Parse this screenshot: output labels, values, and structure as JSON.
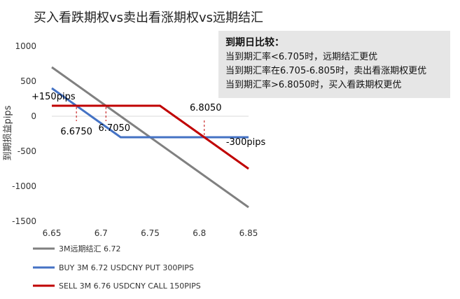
{
  "chart_data": {
    "type": "line",
    "title": "买入看跌期权vs卖出看涨期权vs远期结汇",
    "ylabel": "到期损益pips",
    "xlabel": "",
    "xlim": [
      6.65,
      6.85
    ],
    "ylim": [
      -1500,
      1000
    ],
    "xticks": [
      "6.65",
      "6.7",
      "6.75",
      "6.8",
      "6.85"
    ],
    "yticks": [
      "1000",
      "500",
      "0",
      "-500",
      "-1000",
      "-1500"
    ],
    "grid": false,
    "legend": "bottom",
    "series": [
      {
        "name": "3M远期结汇 6.72",
        "color": "#808080",
        "points": [
          [
            6.65,
            700
          ],
          [
            6.85,
            -1300
          ]
        ]
      },
      {
        "name": "BUY 3M 6.72 USDCNY PUT 300PIPS",
        "color": "#4472C4",
        "points": [
          [
            6.65,
            400
          ],
          [
            6.72,
            -300
          ],
          [
            6.85,
            -300
          ]
        ]
      },
      {
        "name": "SELL 3M 6.76 USDCNY CALL 150PIPS",
        "color": "#C00000",
        "points": [
          [
            6.65,
            150
          ],
          [
            6.76,
            150
          ],
          [
            6.85,
            -750
          ]
        ]
      }
    ],
    "annotations": [
      {
        "text": "+150pips",
        "x": 6.65,
        "y": 150
      },
      {
        "text": "-300pips",
        "x": 6.82,
        "y": -450
      },
      {
        "text": "6.6750",
        "x": 6.675,
        "y": 150,
        "marker_x": 6.675
      },
      {
        "text": "6.7050",
        "x": 6.705,
        "y": 150,
        "marker_x": 6.705
      },
      {
        "text": "6.8050",
        "x": 6.805,
        "y": -300,
        "marker_x": 6.805
      }
    ]
  },
  "comparison_box": {
    "title": "到期日比较：",
    "lines": [
      "当到期汇率<6.705时，远期结汇更优",
      "当到期汇率在6.705-6.805时，卖出看涨期权更优",
      "当到期汇率>6.8050时，买入看跌期权更优"
    ]
  }
}
